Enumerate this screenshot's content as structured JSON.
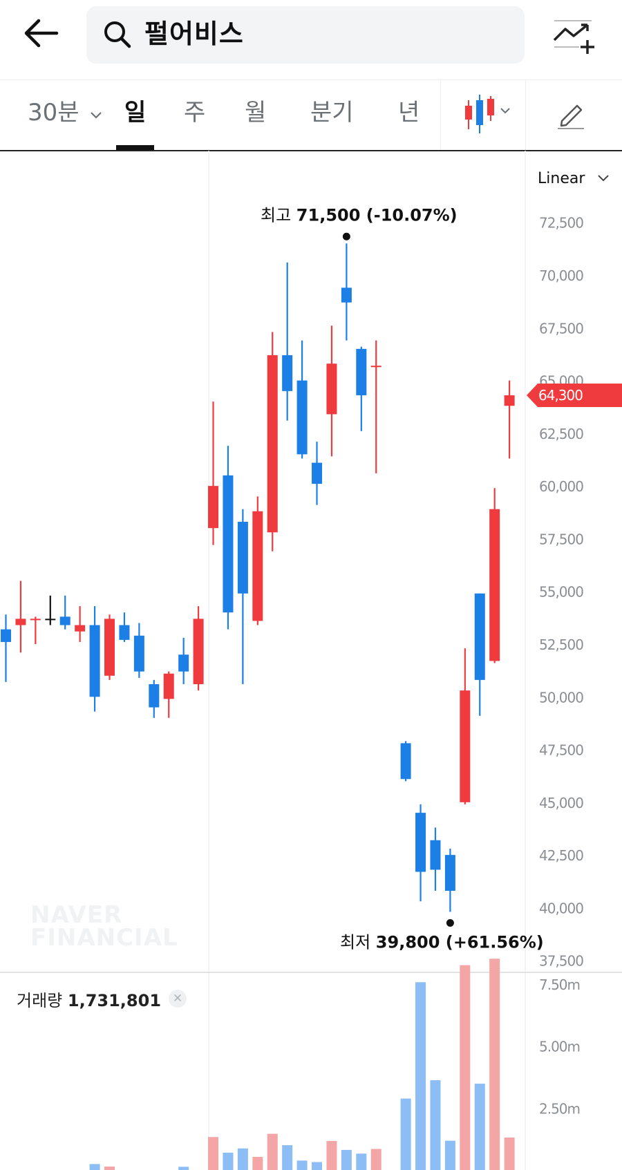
{
  "header": {
    "search_text": "펄어비스"
  },
  "period_tabs": [
    {
      "label": "30분",
      "active": false,
      "dropdown": true
    },
    {
      "label": "일",
      "active": true
    },
    {
      "label": "주",
      "active": false
    },
    {
      "label": "월",
      "active": false
    },
    {
      "label": "분기",
      "active": false
    },
    {
      "label": "년",
      "active": false
    }
  ],
  "icons": {
    "back": "arrow-left-icon",
    "search": "search-icon",
    "add_chart": "add-chart-icon",
    "candle_type": "candlestick-icon",
    "edit": "pencil-icon"
  },
  "colors": {
    "up": "#ef3a3e",
    "down": "#1c7fe6",
    "volume_up": "#f4a5a6",
    "volume_down": "#8cbdf4"
  },
  "scale_label": "Linear",
  "watermark": [
    "NAVER",
    "FINANCIAL"
  ],
  "chart_data": {
    "type": "candlestick",
    "y_axis": {
      "scale": "linear",
      "ylim": [
        36900,
        75900
      ],
      "ticks": [
        "72,500",
        "70,000",
        "67,500",
        "65,000",
        "62,500",
        "60,000",
        "57,500",
        "55,000",
        "52,500",
        "50,000",
        "47,500",
        "45,000",
        "42,500",
        "40,000",
        "37,500"
      ],
      "tick_values": [
        72500,
        70000,
        67500,
        65000,
        62500,
        60000,
        57500,
        55000,
        52500,
        50000,
        47500,
        45000,
        42500,
        40000,
        37500
      ]
    },
    "current_price": {
      "label": "64,300",
      "value": 64300
    },
    "high_annotation": {
      "prefix": "최고",
      "text": "71,500 (-10.07%)",
      "value": 71500
    },
    "low_annotation": {
      "prefix": "최저",
      "text": "39,800 (+61.56%)",
      "value": 39800
    },
    "candles": [
      {
        "o": 53200,
        "h": 53900,
        "l": 50700,
        "c": 52600
      },
      {
        "o": 53400,
        "h": 55500,
        "l": 52100,
        "c": 53700
      },
      {
        "o": 53700,
        "h": 53800,
        "l": 52500,
        "c": 53700
      },
      {
        "o": 53700,
        "h": 54800,
        "l": 53400,
        "c": 53700
      },
      {
        "o": 53800,
        "h": 54800,
        "l": 53200,
        "c": 53400
      },
      {
        "o": 53100,
        "h": 54300,
        "l": 52600,
        "c": 53400
      },
      {
        "o": 53400,
        "h": 54300,
        "l": 49300,
        "c": 50000
      },
      {
        "o": 51000,
        "h": 53900,
        "l": 50800,
        "c": 53700
      },
      {
        "o": 53400,
        "h": 54000,
        "l": 52600,
        "c": 52700
      },
      {
        "o": 52900,
        "h": 53500,
        "l": 50900,
        "c": 51200
      },
      {
        "o": 50600,
        "h": 50800,
        "l": 49000,
        "c": 49500
      },
      {
        "o": 49900,
        "h": 51200,
        "l": 49000,
        "c": 51100
      },
      {
        "o": 52000,
        "h": 52800,
        "l": 50600,
        "c": 51200
      },
      {
        "o": 50600,
        "h": 54300,
        "l": 50300,
        "c": 53700
      },
      {
        "o": 58000,
        "h": 64000,
        "l": 57200,
        "c": 60000
      },
      {
        "o": 60500,
        "h": 61900,
        "l": 53200,
        "c": 54000
      },
      {
        "o": 58300,
        "h": 58900,
        "l": 50600,
        "c": 54900
      },
      {
        "o": 53600,
        "h": 59500,
        "l": 53400,
        "c": 58800
      },
      {
        "o": 57800,
        "h": 67300,
        "l": 56900,
        "c": 66200
      },
      {
        "o": 66200,
        "h": 70600,
        "l": 63100,
        "c": 64500
      },
      {
        "o": 65000,
        "h": 66900,
        "l": 61300,
        "c": 61500
      },
      {
        "o": 61100,
        "h": 62100,
        "l": 59100,
        "c": 60100
      },
      {
        "o": 63400,
        "h": 67600,
        "l": 61400,
        "c": 65800
      },
      {
        "o": 69400,
        "h": 71500,
        "l": 66900,
        "c": 68700
      },
      {
        "o": 66500,
        "h": 66600,
        "l": 62600,
        "c": 64300
      },
      {
        "o": 65700,
        "h": 66900,
        "l": 60600,
        "c": 65700
      },
      null,
      {
        "o": 47800,
        "h": 47900,
        "l": 46000,
        "c": 46100
      },
      {
        "o": 44500,
        "h": 44900,
        "l": 40300,
        "c": 41700
      },
      {
        "o": 43200,
        "h": 43800,
        "l": 40800,
        "c": 41800
      },
      {
        "o": 42500,
        "h": 42800,
        "l": 39800,
        "c": 40800
      },
      {
        "o": 45000,
        "h": 52300,
        "l": 44900,
        "c": 50300
      },
      {
        "o": 54900,
        "h": 54900,
        "l": 49100,
        "c": 50800
      },
      {
        "o": 51700,
        "h": 59900,
        "l": 51600,
        "c": 58900
      },
      {
        "o": 63800,
        "h": 65000,
        "l": 61300,
        "c": 64300
      }
    ],
    "volume": {
      "label": "거래량",
      "value_text": "1,731,801",
      "ticks": [
        "7.50m",
        "5.00m",
        "2.50m"
      ],
      "tick_values": [
        7500000,
        5000000,
        2500000
      ],
      "ylim": [
        0,
        9000000
      ],
      "values": [
        null,
        null,
        null,
        null,
        null,
        null,
        240000,
        140000,
        null,
        null,
        null,
        null,
        130000,
        null,
        1330000,
        700000,
        870000,
        530000,
        1460000,
        1000000,
        380000,
        320000,
        1170000,
        810000,
        660000,
        850000,
        null,
        2880000,
        7570000,
        3620000,
        1180000,
        8260000,
        3480000,
        8520000,
        1310000
      ]
    }
  }
}
